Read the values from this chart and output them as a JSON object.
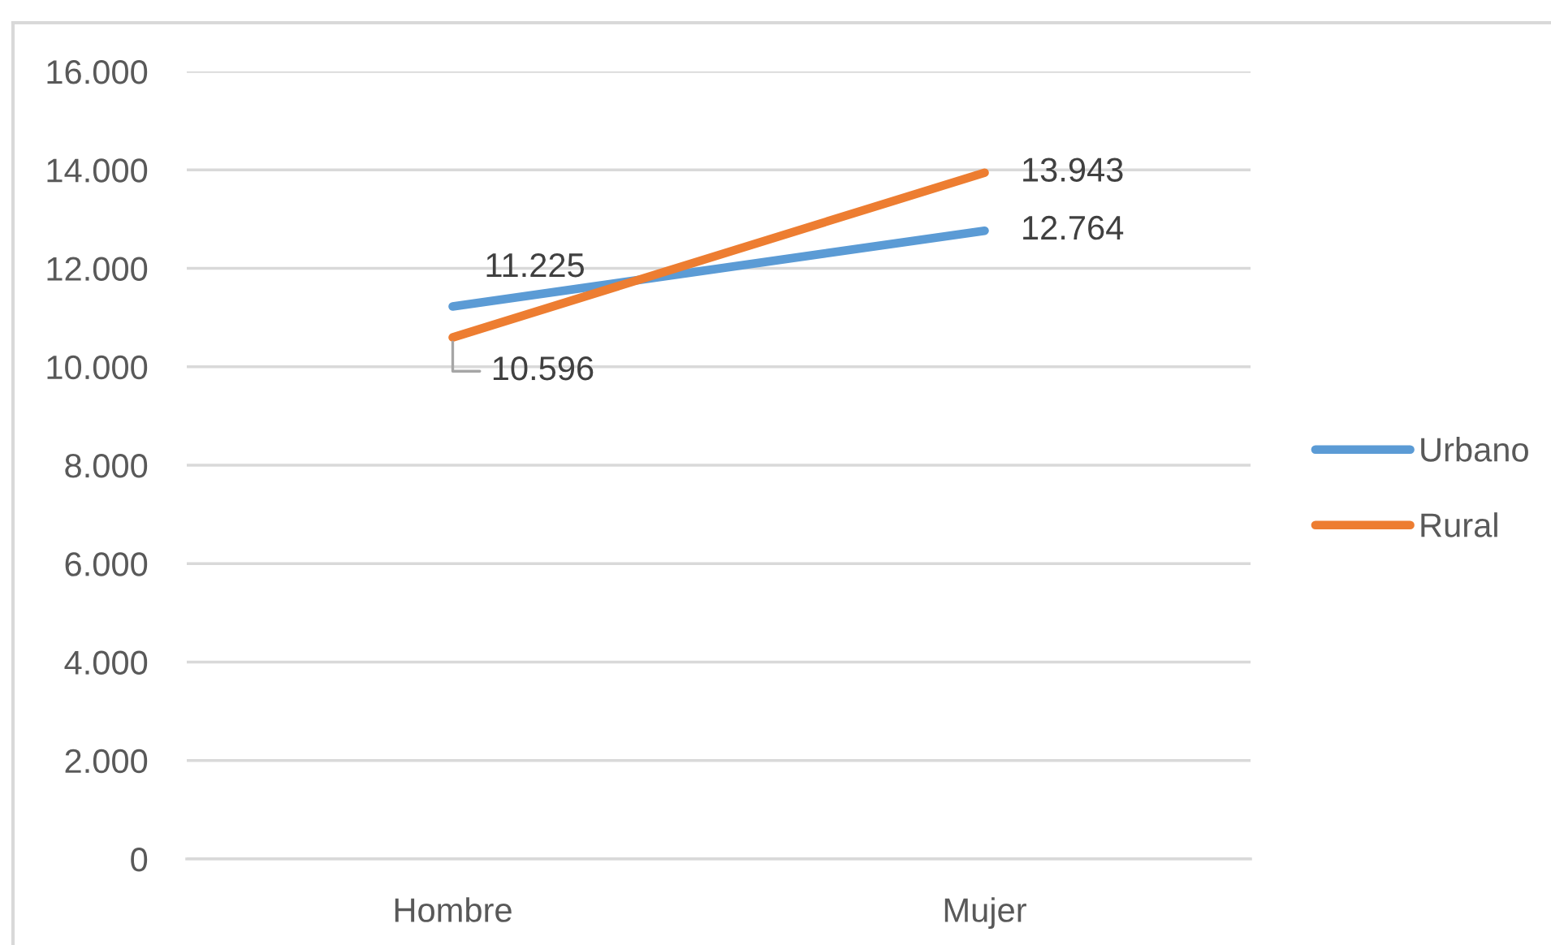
{
  "chart_data": {
    "type": "line",
    "categories": [
      "Hombre",
      "Mujer"
    ],
    "series": [
      {
        "name": "Urbano",
        "color": "#5b9bd5",
        "values": [
          11225,
          12764
        ],
        "value_labels": [
          "11.225",
          "12.764"
        ]
      },
      {
        "name": "Rural",
        "color": "#ed7d31",
        "values": [
          10596,
          13943
        ],
        "value_labels": [
          "10.596",
          "13.943"
        ]
      }
    ],
    "ylim": [
      0,
      16000
    ],
    "yticks": [
      0,
      {
        "value": 2000,
        "label": "2.000"
      },
      {
        "value": 4000,
        "label": "4.000"
      },
      {
        "value": 6000,
        "label": "6.000"
      },
      {
        "value": 8000,
        "label": "8.000"
      },
      {
        "value": 10000,
        "label": "10.000"
      },
      {
        "value": 12000,
        "label": "12.000"
      },
      {
        "value": 14000,
        "label": "14.000"
      },
      {
        "value": 16000,
        "label": "16.000"
      }
    ],
    "grid": "y",
    "legend": "right",
    "marker": "none",
    "line_style": "solid"
  }
}
